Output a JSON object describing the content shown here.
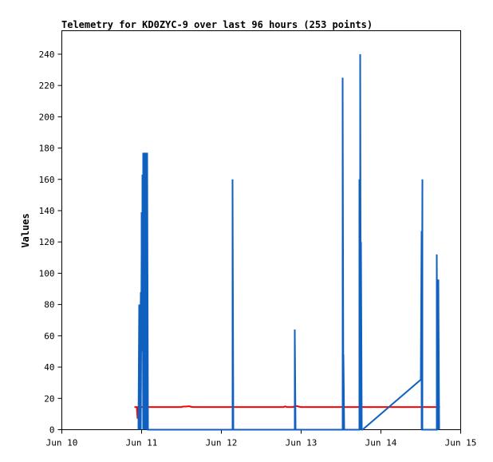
{
  "chart_data": {
    "type": "line",
    "title": "Telemetry for KD0ZYC-9 over last 96 hours (253 points)",
    "xlabel": "",
    "ylabel": "Values",
    "xlim": [
      10,
      15
    ],
    "ylim": [
      0,
      255
    ],
    "x_ticks": [
      {
        "value": 10,
        "label": "Jun 10"
      },
      {
        "value": 11,
        "label": "Jun 11"
      },
      {
        "value": 12,
        "label": "Jun 12"
      },
      {
        "value": 13,
        "label": "Jun 13"
      },
      {
        "value": 14,
        "label": "Jun 14"
      },
      {
        "value": 15,
        "label": "Jun 15"
      }
    ],
    "y_ticks": [
      0,
      20,
      40,
      60,
      80,
      100,
      120,
      140,
      160,
      180,
      200,
      220,
      240
    ],
    "grid": false,
    "legend": "none",
    "series": [
      {
        "color": "#ff0000",
        "x": [
          10.91,
          10.94,
          10.95,
          10.96,
          10.97,
          11.0,
          11.5,
          11.52,
          11.55,
          11.6,
          11.62,
          11.65,
          12.0,
          12.5,
          12.78,
          12.8,
          12.82,
          12.9,
          12.93,
          12.96,
          12.98,
          13.0,
          13.5,
          14.0,
          14.5,
          14.74
        ],
        "y": [
          14.5,
          14.5,
          7,
          14.5,
          14.5,
          14.5,
          14.5,
          14.8,
          14.8,
          15,
          14.6,
          14.5,
          14.5,
          14.5,
          14.5,
          14.9,
          14.5,
          14.5,
          15.2,
          14.9,
          14.6,
          14.5,
          14.5,
          14.5,
          14.5,
          14.5
        ]
      },
      {
        "color": "#1060c0",
        "x": [
          10.96,
          10.97,
          10.97,
          10.98,
          10.98,
          10.99,
          10.99,
          11.0,
          11.0,
          11.01,
          11.01,
          11.02,
          11.02,
          11.03,
          11.03,
          11.04,
          11.04,
          11.05,
          11.05,
          11.06,
          11.06,
          11.07,
          11.07,
          11.08,
          11.08,
          12.14,
          12.14,
          12.15,
          12.15,
          12.92,
          12.92,
          12.93,
          12.93,
          13.52,
          13.52,
          13.53,
          13.53,
          13.54,
          13.54,
          13.55,
          13.55,
          13.73,
          13.73,
          13.74,
          13.74,
          13.75,
          13.75,
          13.76,
          13.76,
          13.77,
          13.77,
          14.5,
          14.51,
          14.51,
          14.52,
          14.52,
          14.53,
          14.53,
          14.7,
          14.7,
          14.71,
          14.71,
          14.72,
          14.72,
          14.73,
          14.73
        ],
        "y": [
          0,
          80,
          0,
          63,
          38,
          88,
          0,
          113,
          139,
          50,
          163,
          0,
          177,
          0,
          177,
          0,
          177,
          0,
          177,
          0,
          177,
          0,
          177,
          0,
          0,
          0,
          160,
          0,
          0,
          0,
          64,
          0,
          0,
          0,
          225,
          0,
          48,
          0,
          0,
          0,
          0,
          0,
          160,
          0,
          240,
          0,
          120,
          0,
          0,
          0,
          0,
          32,
          127,
          0,
          160,
          0,
          0,
          0,
          0,
          112,
          0,
          96,
          0,
          96,
          0,
          0
        ]
      }
    ]
  }
}
